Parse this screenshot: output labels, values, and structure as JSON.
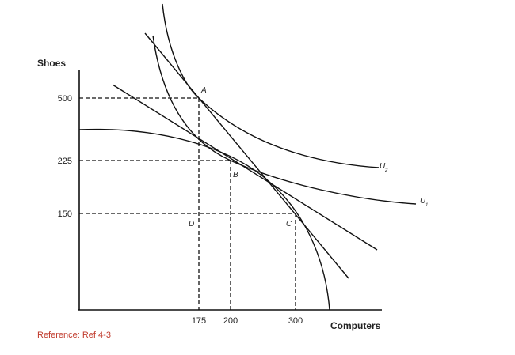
{
  "axes": {
    "y_title": "Shoes",
    "x_title": "Computers",
    "y_ticks": [
      "500",
      "225",
      "150"
    ],
    "x_ticks": [
      "175",
      "200",
      "300"
    ]
  },
  "points": {
    "a": "A",
    "b": "B",
    "c": "C",
    "d": "D"
  },
  "curves": {
    "u2": {
      "letter": "U",
      "sub": "2"
    },
    "u1": {
      "letter": "U",
      "sub": "1"
    }
  },
  "reference": "Reference: Ref 4-3"
}
